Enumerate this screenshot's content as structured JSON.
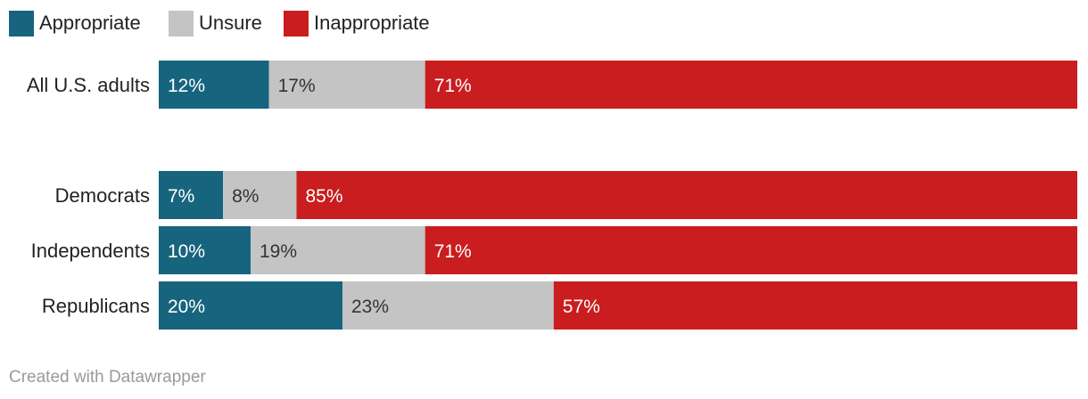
{
  "chart_data": {
    "type": "bar",
    "orientation": "horizontal",
    "stacked": true,
    "normalized_percent": true,
    "categories": [
      "All U.S. adults",
      "Democrats",
      "Independents",
      "Republicans"
    ],
    "series": [
      {
        "name": "Appropriate",
        "color": "#17647e",
        "label_color": "#ffffff",
        "values": [
          12,
          7,
          10,
          20
        ]
      },
      {
        "name": "Unsure",
        "color": "#c4c4c4",
        "label_color": "#333333",
        "values": [
          17,
          8,
          19,
          23
        ]
      },
      {
        "name": "Inappropriate",
        "color": "#c91d1f",
        "label_color": "#ffffff",
        "values": [
          71,
          85,
          71,
          57
        ]
      }
    ],
    "value_suffix": "%",
    "xlim": [
      0,
      100
    ],
    "legend_position": "top-left",
    "grid": false
  },
  "credit": "Created with Datawrapper"
}
